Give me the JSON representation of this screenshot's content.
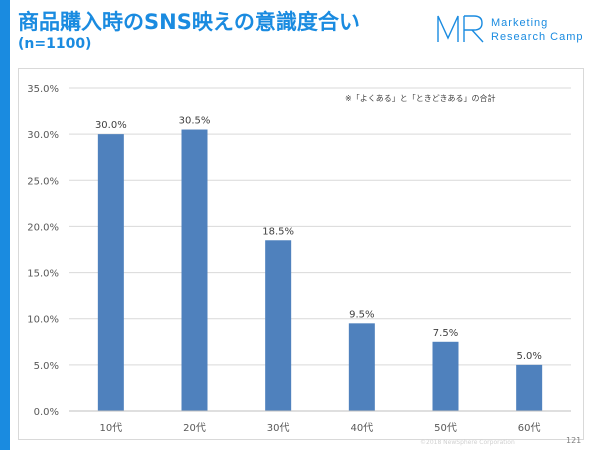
{
  "header": {
    "title": "商品購入時のSNS映えの意識度合い",
    "subtitle": "(n=1100)"
  },
  "logo": {
    "line1": "Marketing",
    "line2": "Research Camp"
  },
  "colors": {
    "accent": "#1a8be0",
    "bar": "#4f81bd",
    "gridline": "#d9d9d9",
    "axis_text": "#595959"
  },
  "note": "※「よくある」と「ときどきある」の合計",
  "footer": {
    "copyright": "©2018 NewSphere Corporation",
    "page_number": "121"
  },
  "chart_data": {
    "type": "bar",
    "categories": [
      "10代",
      "20代",
      "30代",
      "40代",
      "50代",
      "60代"
    ],
    "values": [
      30.0,
      30.5,
      18.5,
      9.5,
      7.5,
      5.0
    ],
    "value_labels": [
      "30.0%",
      "30.5%",
      "18.5%",
      "9.5%",
      "7.5%",
      "5.0%"
    ],
    "y_ticks": [
      "0.0%",
      "5.0%",
      "10.0%",
      "15.0%",
      "20.0%",
      "25.0%",
      "30.0%",
      "35.0%"
    ],
    "ylim": [
      0,
      35
    ],
    "grid": true,
    "legend": false,
    "title": "",
    "xlabel": "",
    "ylabel": ""
  }
}
